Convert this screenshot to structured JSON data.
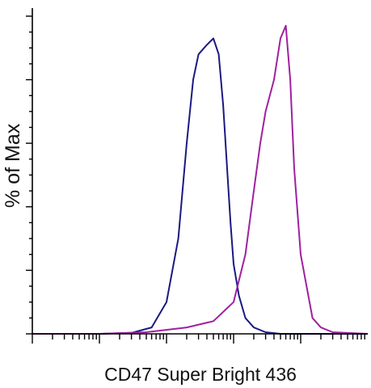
{
  "chart_data": {
    "type": "line",
    "title": "",
    "xlabel": "CD47 Super Bright 436",
    "ylabel": "% of Max",
    "xscale": "log",
    "xlim": [
      1,
      100000
    ],
    "ylim": [
      0,
      100
    ],
    "grid": false,
    "legend": "none",
    "series": [
      {
        "color": "#1a1a80",
        "x": [
          1,
          10,
          30,
          60,
          100,
          150,
          200,
          250,
          300,
          400,
          500,
          600,
          700,
          800,
          900,
          1000,
          1200,
          1500,
          2000,
          3000,
          5000,
          10000,
          100000
        ],
        "y": [
          0,
          0,
          0.3,
          2,
          10,
          30,
          60,
          80,
          88,
          91,
          93,
          88,
          72,
          52,
          35,
          22,
          12,
          5,
          2,
          0.5,
          0,
          0,
          0
        ]
      },
      {
        "color": "#a020a0",
        "x": [
          1,
          10,
          50,
          200,
          500,
          1000,
          1500,
          2000,
          2500,
          3000,
          4000,
          5000,
          6000,
          7000,
          8000,
          10000,
          15000,
          20000,
          30000,
          100000
        ],
        "y": [
          0,
          0,
          0.5,
          2,
          4,
          10,
          25,
          45,
          60,
          70,
          80,
          93,
          97,
          80,
          52,
          25,
          5,
          2,
          0.5,
          0
        ]
      }
    ]
  }
}
